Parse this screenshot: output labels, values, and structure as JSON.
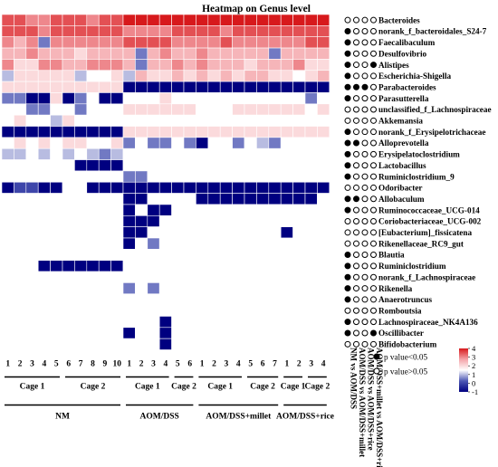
{
  "chart_data": {
    "type": "heatmap",
    "title": "Heatmap on Genus level",
    "rows": [
      "Bacteroides",
      "norank_f_bacteroidales_S24-7",
      "Faecalibaculum",
      "Desulfovibrio",
      "Alistipes",
      "Escherichia-Shigella",
      "Parabacteroides",
      "Parasutterella",
      "unclassified_f_Lachnospiraceae",
      "Akkemansia",
      "norank_f_Erysipelotrichaceae",
      "Alloprevotella",
      "Erysipelatoclostridium",
      "Lactobacillus",
      "Ruminiclostridium_9",
      "Odoribacter",
      "Allobaculum",
      "Ruminococcaceae_UCG-014",
      "Coriobacteriaceae_UCG-002",
      "[Eubacterium]_fissicatena",
      "Rikenellaceae_RC9_gut",
      "Blautia",
      "Ruminiclostridium",
      "norank_f_Lachnospiraceae",
      "Rikenella",
      "Anaerotruncus",
      "Romboutsia",
      "Lachnospiraceae_NK4A136",
      "Oscillibacter",
      "Bifidobacterium"
    ],
    "column_labels": [
      "1",
      "2",
      "3",
      "4",
      "5",
      "6",
      "7",
      "8",
      "9",
      "10",
      "1",
      "2",
      "3",
      "4",
      "5",
      "6",
      "1",
      "2",
      "3",
      "4",
      "5",
      "6",
      "7",
      "1",
      "2",
      "3",
      "4"
    ],
    "groups": [
      {
        "name": "NM",
        "subgroups": [
          {
            "name": "Cage 1",
            "span": 5
          },
          {
            "name": "Cage 2",
            "span": 5
          }
        ]
      },
      {
        "name": "AOM/DSS",
        "subgroups": [
          {
            "name": "Cage 1",
            "span": 4
          },
          {
            "name": "Cage 2",
            "span": 2
          }
        ]
      },
      {
        "name": "AOM/DSS+millet",
        "subgroups": [
          {
            "name": "Cage 1",
            "span": 4
          },
          {
            "name": "Cage 2",
            "span": 3
          }
        ]
      },
      {
        "name": "AOM/DSS+rice",
        "subgroups": [
          {
            "name": "Cage 1",
            "span": 2
          },
          {
            "name": "Cage 2",
            "span": 2
          }
        ]
      }
    ],
    "values": [
      [
        3.5,
        3.5,
        3,
        3,
        3.5,
        3.5,
        3.5,
        3,
        3.5,
        3.5,
        4,
        4,
        4,
        4,
        4,
        4,
        4,
        4,
        4,
        4,
        4,
        4,
        4,
        4,
        4,
        4,
        4
      ],
      [
        3.5,
        3.5,
        3.5,
        3,
        3.5,
        3.5,
        3.5,
        3.5,
        3.5,
        3.5,
        3,
        3,
        3,
        3,
        3.5,
        3.5,
        3.5,
        3.5,
        3,
        3.5,
        3.5,
        3.5,
        3.5,
        3.5,
        3.5,
        3.5,
        3.5
      ],
      [
        3,
        2.5,
        3,
        0.5,
        3,
        3,
        3,
        3,
        3,
        3,
        3.5,
        3.5,
        3.5,
        3.5,
        3,
        3,
        3,
        3,
        3.5,
        3,
        3,
        3,
        3,
        3,
        3,
        3.5,
        3.5
      ],
      [
        2.5,
        2.5,
        3,
        2.5,
        2.5,
        2.5,
        2,
        2.5,
        2.5,
        2.5,
        2.5,
        0.5,
        2.5,
        3,
        2.5,
        2.5,
        3,
        2.5,
        2.5,
        2.5,
        2.5,
        2.5,
        0.5,
        2.5,
        2.5,
        2.5,
        2.5
      ],
      [
        3,
        2,
        2,
        3,
        3,
        2.5,
        2.5,
        3,
        3,
        3,
        2.5,
        0.5,
        2.5,
        2.5,
        3,
        2.5,
        3,
        2.5,
        2.5,
        2.5,
        2,
        2.5,
        2.5,
        2.5,
        3,
        2,
        2
      ],
      [
        1,
        2,
        2,
        2,
        2,
        2,
        1,
        1.5,
        1.5,
        2,
        1,
        2.5,
        2,
        2,
        2.5,
        2,
        2.5,
        2,
        2.5,
        2,
        2.5,
        2.5,
        2,
        2,
        1.5,
        2,
        2.5
      ],
      [
        2,
        2,
        2,
        2,
        2,
        2,
        2,
        2,
        2,
        2,
        -1,
        -1,
        -1,
        -1,
        -1,
        -1,
        -1,
        -1,
        -1,
        -1,
        -1,
        -1,
        -1,
        -1,
        -1,
        -1,
        -1
      ],
      [
        0.5,
        0.5,
        -1,
        -1,
        2,
        -1,
        0.5,
        1.5,
        -1,
        -1,
        1.5,
        1.5,
        1.5,
        2,
        1.5,
        1.5,
        1.5,
        1.5,
        1.5,
        1.5,
        1.5,
        1.5,
        1.5,
        1.5,
        1.5,
        0.5,
        1.5
      ],
      [
        1.5,
        1.5,
        0.5,
        0.5,
        1.5,
        1.5,
        0.5,
        1.5,
        1.5,
        1.5,
        2,
        2,
        2,
        2,
        2,
        2,
        1.5,
        1.5,
        1.5,
        2,
        2,
        2,
        2,
        2,
        2,
        1.5,
        2
      ],
      [
        1.5,
        2,
        1.5,
        1.5,
        1,
        2,
        1.5,
        1.5,
        1.5,
        1.5,
        1.5,
        1.5,
        1.5,
        1.5,
        1.5,
        1.5,
        1.5,
        1.5,
        1.5,
        1.5,
        1.5,
        1.5,
        1.5,
        1.5,
        1.5,
        1.5,
        1.5
      ],
      [
        -1,
        -1,
        -1,
        -1,
        -1,
        -1,
        -1,
        -1,
        -1,
        -1,
        2,
        2,
        2,
        2,
        2,
        2,
        2,
        2,
        2,
        2,
        2,
        2,
        2,
        2,
        2,
        2,
        2
      ],
      [
        1.5,
        2,
        1.5,
        2,
        1.5,
        2,
        2,
        1.5,
        1.5,
        2,
        0.5,
        1.5,
        0.5,
        0.5,
        1.5,
        0.5,
        -1,
        1.5,
        1.5,
        0.5,
        1.5,
        1,
        0.5,
        1.5,
        1.5,
        1.5,
        1.5
      ],
      [
        1,
        1,
        1.5,
        1,
        1.5,
        1,
        1.5,
        1,
        0.5,
        1,
        1.5,
        1.5,
        1.5,
        1.5,
        1.5,
        1.5,
        1.5,
        1.5,
        1.5,
        1.5,
        1.5,
        1.5,
        1.5,
        1.5,
        1.5,
        1.5,
        1.5
      ],
      [
        1.5,
        1.5,
        1.5,
        1.5,
        1.5,
        1.5,
        -1,
        -1,
        -1,
        -1,
        1.5,
        1.5,
        1.5,
        1.5,
        1.5,
        1.5,
        1.5,
        1.5,
        1.5,
        1.5,
        1.5,
        1.5,
        1.5,
        1.5,
        1.5,
        1.5,
        1.5
      ],
      [
        1.5,
        1.5,
        1.5,
        1.5,
        1.5,
        1.5,
        1.5,
        1.5,
        1.5,
        1.5,
        0.5,
        0.5,
        1.5,
        1.5,
        1.5,
        1.5,
        1.5,
        1.5,
        1.5,
        1.5,
        1.5,
        1.5,
        1.5,
        1.5,
        1.5,
        1.5,
        1.5
      ],
      [
        -1,
        0,
        0,
        -1,
        -1,
        1.5,
        1.5,
        -1,
        -1,
        -1,
        -1,
        -1,
        -1,
        -1,
        -1,
        -1,
        -1,
        -1,
        -1,
        -1,
        -1,
        -1,
        -1,
        -1,
        -1,
        -1,
        -1
      ],
      [
        1.5,
        1.5,
        1.5,
        1.5,
        1.5,
        1.5,
        1.5,
        1.5,
        1.5,
        1.5,
        -1,
        -1,
        1.5,
        1.5,
        1.5,
        1.5,
        -1,
        -1,
        -1,
        -1,
        -1,
        -1,
        -1,
        -1,
        -1,
        -1,
        1.5
      ],
      [
        1.5,
        1.5,
        1.5,
        1.5,
        1.5,
        1.5,
        1.5,
        1.5,
        1.5,
        1.5,
        -1,
        1.5,
        -1,
        -1,
        1.5,
        1.5,
        1.5,
        1.5,
        1.5,
        1.5,
        1.5,
        1.5,
        1.5,
        1.5,
        1.5,
        1.5,
        1.5
      ],
      [
        1.5,
        1.5,
        1.5,
        1.5,
        1.5,
        1.5,
        1.5,
        1.5,
        1.5,
        1.5,
        -1,
        -1,
        -1,
        1.5,
        1.5,
        1.5,
        1.5,
        1.5,
        1.5,
        1.5,
        1.5,
        1.5,
        1.5,
        1.5,
        1.5,
        1.5,
        1.5
      ],
      [
        1.5,
        1.5,
        1.5,
        1.5,
        1.5,
        1.5,
        1.5,
        1.5,
        1.5,
        1.5,
        -1,
        -1,
        1.5,
        1.5,
        1.5,
        1.5,
        1.5,
        1.5,
        1.5,
        1.5,
        1.5,
        1.5,
        1.5,
        -1,
        1.5,
        1.5,
        1.5
      ],
      [
        1.5,
        1.5,
        1.5,
        1.5,
        1.5,
        1.5,
        1.5,
        1.5,
        1.5,
        1.5,
        -1,
        1.5,
        0.5,
        1.5,
        1.5,
        1.5,
        1.5,
        1.5,
        1.5,
        1.5,
        1.5,
        1.5,
        1.5,
        1.5,
        1.5,
        1.5,
        1.5
      ],
      [
        1.5,
        1.5,
        1.5,
        1.5,
        1.5,
        1.5,
        1.5,
        1.5,
        1.5,
        1.5,
        1.5,
        1.5,
        1.5,
        1.5,
        1.5,
        1.5,
        1.5,
        1.5,
        1.5,
        1.5,
        1.5,
        1.5,
        1.5,
        1.5,
        1.5,
        1.5,
        1.5
      ],
      [
        1.5,
        1.5,
        1.5,
        -1,
        -1,
        -1,
        -1,
        -1,
        -1,
        -1,
        1.5,
        1.5,
        1.5,
        1.5,
        1.5,
        1.5,
        1.5,
        1.5,
        1.5,
        1.5,
        1.5,
        1.5,
        1.5,
        1.5,
        1.5,
        1.5,
        1.5
      ],
      [
        1.5,
        1.5,
        1.5,
        1.5,
        1.5,
        1.5,
        1.5,
        1.5,
        1.5,
        1.5,
        1.5,
        1.5,
        1.5,
        1.5,
        1.5,
        1.5,
        1.5,
        1.5,
        1.5,
        1.5,
        1.5,
        1.5,
        1.5,
        1.5,
        1.5,
        1.5,
        1.5
      ],
      [
        1.5,
        1.5,
        1.5,
        1.5,
        1.5,
        1.5,
        1.5,
        1.5,
        1.5,
        1.5,
        0.5,
        1.5,
        0.5,
        1.5,
        1.5,
        1.5,
        1.5,
        1.5,
        1.5,
        1.5,
        1.5,
        1.5,
        1.5,
        1.5,
        1.5,
        1.5,
        1.5
      ],
      [
        1.5,
        1.5,
        1.5,
        1.5,
        1.5,
        1.5,
        1.5,
        1.5,
        1.5,
        1.5,
        1.5,
        1.5,
        1.5,
        1.5,
        1.5,
        1.5,
        1.5,
        1.5,
        1.5,
        1.5,
        1.5,
        1.5,
        1.5,
        1.5,
        1.5,
        1.5,
        1.5
      ],
      [
        1.5,
        1.5,
        1.5,
        1.5,
        1.5,
        1.5,
        1.5,
        1.5,
        1.5,
        1.5,
        1.5,
        1.5,
        1.5,
        1.5,
        1.5,
        1.5,
        1.5,
        1.5,
        1.5,
        1.5,
        1.5,
        1.5,
        1.5,
        1.5,
        1.5,
        1.5,
        1.5
      ],
      [
        1.5,
        1.5,
        1.5,
        1.5,
        1.5,
        1.5,
        1.5,
        1.5,
        1.5,
        1.5,
        1.5,
        1.5,
        1.5,
        -1,
        1.5,
        1.5,
        1.5,
        1.5,
        1.5,
        1.5,
        1.5,
        1.5,
        1.5,
        1.5,
        1.5,
        1.5,
        1.5
      ],
      [
        1.5,
        1.5,
        1.5,
        1.5,
        1.5,
        1.5,
        1.5,
        1.5,
        1.5,
        1.5,
        -1,
        1.5,
        1.5,
        -1,
        1.5,
        1.5,
        1.5,
        1.5,
        1.5,
        1.5,
        1.5,
        1.5,
        1.5,
        1.5,
        1.5,
        1.5,
        1.5
      ],
      [
        1.5,
        1.5,
        1.5,
        1.5,
        1.5,
        1.5,
        1.5,
        1.5,
        1.5,
        1.5,
        1.5,
        1.5,
        1.5,
        -1,
        1.5,
        1.5,
        1.5,
        1.5,
        1.5,
        1.5,
        1.5,
        1.5,
        1.5,
        1.5,
        1.5,
        1.5,
        1.5
      ]
    ],
    "color_scale": {
      "min": -1,
      "max": 4,
      "ticks": [
        "4",
        "3",
        "2",
        "1",
        "0",
        "-1"
      ],
      "colors": [
        "#000080",
        "#4d58b4",
        "#ffffff",
        "#f4a3a8",
        "#d7191c"
      ]
    },
    "significance": {
      "comparisons": [
        "NM vs AOM/DSS",
        "AOM/DSS vs AOM/DSS+millet",
        "AOM/DSS vs AOM/DSS+rice",
        "AOM/DSS+millet vs AOM/DSS+rice"
      ],
      "matrix": [
        [
          false,
          false,
          false,
          false
        ],
        [
          true,
          false,
          false,
          false
        ],
        [
          true,
          false,
          false,
          false
        ],
        [
          true,
          false,
          false,
          false
        ],
        [
          true,
          false,
          false,
          true
        ],
        [
          true,
          false,
          false,
          false
        ],
        [
          true,
          true,
          true,
          false
        ],
        [
          true,
          false,
          false,
          false
        ],
        [
          false,
          false,
          false,
          false
        ],
        [
          false,
          false,
          false,
          false
        ],
        [
          true,
          false,
          false,
          false
        ],
        [
          true,
          true,
          false,
          false
        ],
        [
          true,
          false,
          false,
          false
        ],
        [
          true,
          false,
          false,
          false
        ],
        [
          true,
          false,
          false,
          false
        ],
        [
          false,
          false,
          false,
          false
        ],
        [
          true,
          true,
          false,
          false
        ],
        [
          true,
          false,
          false,
          false
        ],
        [
          false,
          false,
          false,
          false
        ],
        [
          false,
          false,
          false,
          false
        ],
        [
          false,
          false,
          false,
          false
        ],
        [
          true,
          false,
          false,
          false
        ],
        [
          true,
          false,
          false,
          false
        ],
        [
          true,
          false,
          false,
          false
        ],
        [
          true,
          false,
          false,
          false
        ],
        [
          true,
          false,
          false,
          false
        ],
        [
          false,
          false,
          false,
          false
        ],
        [
          true,
          false,
          false,
          false
        ],
        [
          true,
          false,
          false,
          true
        ],
        [
          false,
          false,
          false,
          false
        ]
      ],
      "legend": [
        {
          "label": "p value<0.05",
          "filled": true
        },
        {
          "label": "p value>0.05",
          "filled": false
        }
      ]
    }
  }
}
